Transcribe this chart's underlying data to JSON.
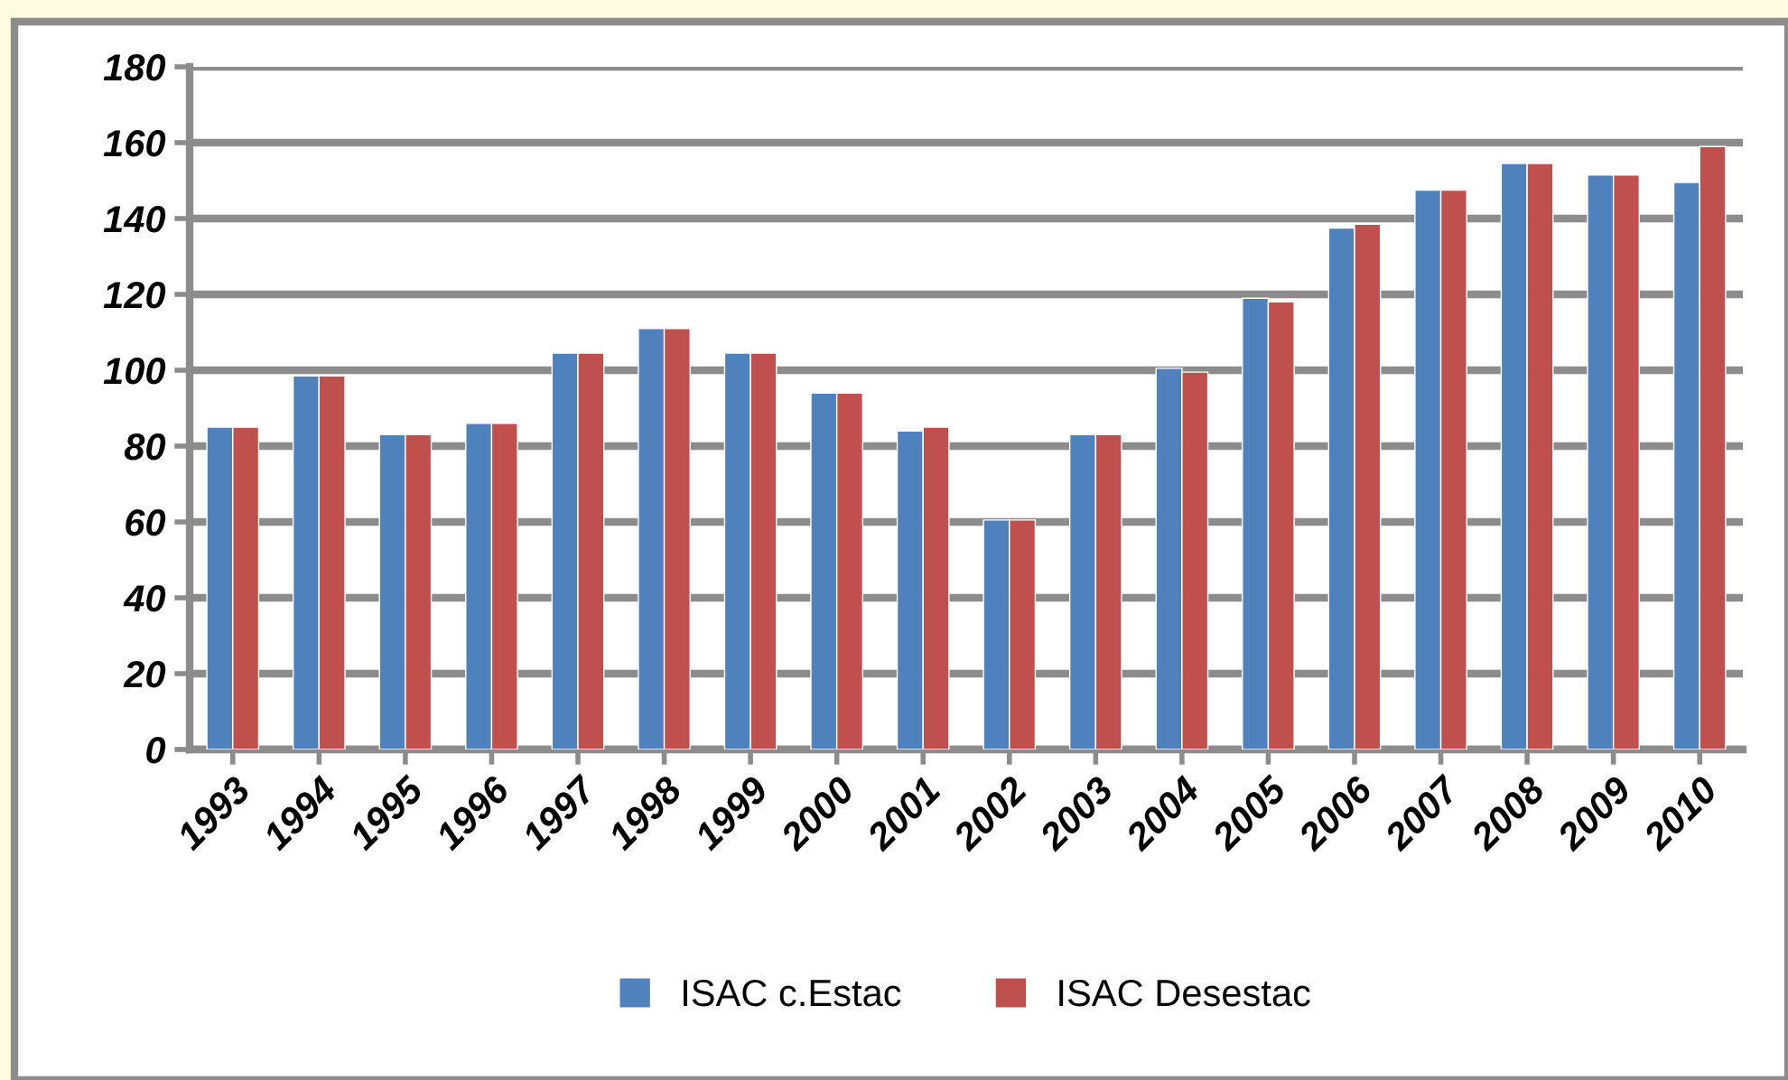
{
  "chart_data": {
    "type": "bar",
    "categories": [
      "1993",
      "1994",
      "1995",
      "1996",
      "1997",
      "1998",
      "1999",
      "2000",
      "2001",
      "2002",
      "2003",
      "2004",
      "2005",
      "2006",
      "2007",
      "2008",
      "2009",
      "2010"
    ],
    "series": [
      {
        "name": "ISAC c.Estac",
        "color": "#4f81bd",
        "values": [
          85,
          98.5,
          83,
          86,
          104.5,
          111,
          104.5,
          94,
          84,
          60.5,
          83,
          100.5,
          119,
          137.5,
          147.5,
          154.5,
          151.5,
          149.5
        ]
      },
      {
        "name": "ISAC Desestac",
        "color": "#c0504d",
        "values": [
          85,
          98.5,
          83,
          86,
          104.5,
          111,
          104.5,
          94,
          85,
          60.5,
          83,
          99.5,
          118,
          138.5,
          147.5,
          154.5,
          151.5,
          159
        ]
      }
    ],
    "ylim": [
      0,
      180
    ],
    "yticks": [
      0,
      20,
      40,
      60,
      80,
      100,
      120,
      140,
      160,
      180
    ],
    "grid": "y",
    "legend": "bottom"
  }
}
